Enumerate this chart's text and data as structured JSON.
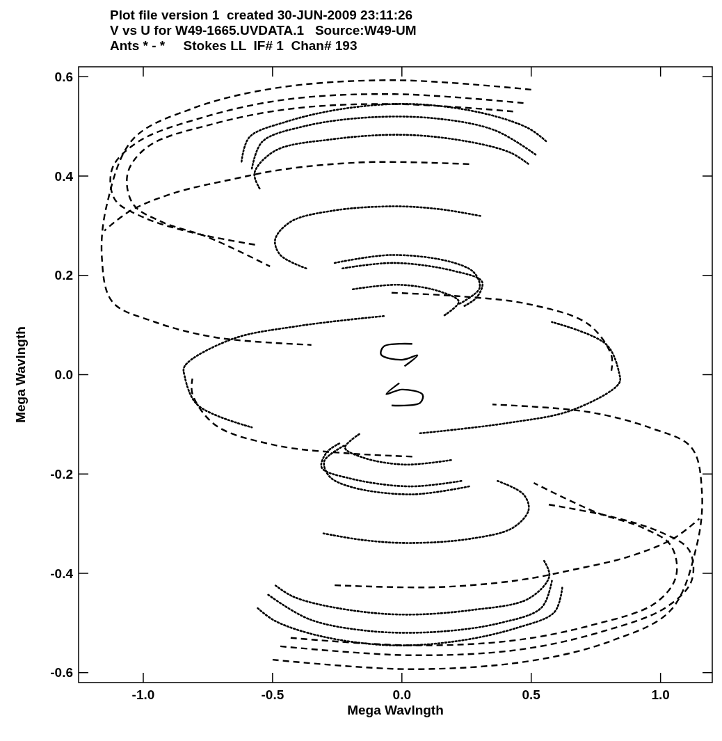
{
  "chart_data": {
    "type": "line",
    "title": "Plot file version 1  created 30-JUN-2009 23:11:26",
    "subtitle": "V vs U for W49-1665.UVDATA.1   Source:W49-UM\nAnts * - *     Stokes LL  IF# 1  Chan# 193",
    "xlabel": "Mega Wavlngth",
    "ylabel": "Mega Wavlngth",
    "xlim": [
      -1.25,
      1.2
    ],
    "ylim": [
      -0.62,
      0.62
    ],
    "xticks": [
      {
        "value": -1,
        "label": "-1.0"
      },
      -0.5,
      {
        "value": 0,
        "label": "0.0"
      },
      0.5,
      {
        "value": 1,
        "label": "1.0"
      }
    ],
    "yticks": [
      -0.6,
      -0.4,
      -0.2,
      {
        "value": 0,
        "label": "0.0"
      },
      0.2,
      0.4,
      0.6
    ],
    "grid": false,
    "series": [
      {
        "color": "#000000",
        "line_style": "dashed",
        "x": [
          0.5,
          -0.03,
          -0.49,
          -0.81,
          -1.04,
          -1.14,
          -1.16,
          -1.12,
          -0.96,
          -0.72,
          -0.35
        ],
        "values": [
          0.574,
          0.593,
          0.577,
          0.536,
          0.474,
          0.344,
          0.236,
          0.147,
          0.107,
          0.075,
          0.06
        ]
      },
      {
        "color": "#000000",
        "line_style": "dashed",
        "x": [
          0.47,
          -0.03,
          -0.45,
          -0.77,
          -1.02,
          -1.12,
          -1.11,
          -1.0,
          -0.81,
          -0.56
        ],
        "values": [
          0.547,
          0.565,
          0.554,
          0.518,
          0.469,
          0.415,
          0.353,
          0.317,
          0.286,
          0.261
        ]
      },
      {
        "color": "#000000",
        "line_style": "dashed",
        "x": [
          0.43,
          -0.03,
          -0.42,
          -0.73,
          -0.98,
          -1.06,
          -1.04,
          -0.93,
          -0.75,
          -0.51
        ],
        "values": [
          0.53,
          0.545,
          0.536,
          0.505,
          0.46,
          0.406,
          0.344,
          0.308,
          0.277,
          0.218
        ]
      },
      {
        "color": "#000000",
        "line_style": "dashed",
        "x": [
          0.26,
          -0.13,
          -0.45,
          -0.66,
          -0.88,
          -1.05,
          -1.15
        ],
        "values": [
          0.424,
          0.428,
          0.414,
          0.393,
          0.366,
          0.33,
          0.29
        ]
      },
      {
        "color": "#000000",
        "line_style": "dotted",
        "x": [
          -0.62,
          -0.59,
          -0.45,
          -0.22,
          0.04,
          0.31,
          0.49,
          0.56
        ],
        "values": [
          0.429,
          0.478,
          0.509,
          0.536,
          0.545,
          0.527,
          0.496,
          0.469
        ]
      },
      {
        "color": "#000000",
        "line_style": "dotted",
        "x": [
          -0.58,
          -0.54,
          -0.38,
          -0.13,
          0.13,
          0.36,
          0.52
        ],
        "values": [
          0.415,
          0.469,
          0.5,
          0.518,
          0.516,
          0.492,
          0.442
        ]
      },
      {
        "color": "#000000",
        "line_style": "dotted",
        "x": [
          -0.55,
          -0.57,
          -0.49,
          -0.27,
          0.01,
          0.26,
          0.42,
          0.49
        ],
        "values": [
          0.375,
          0.406,
          0.451,
          0.474,
          0.483,
          0.469,
          0.447,
          0.424
        ]
      },
      {
        "color": "#000000",
        "line_style": "dotted",
        "x": [
          -0.37,
          -0.47,
          -0.49,
          -0.43,
          -0.27,
          -0.03,
          0.15,
          0.31
        ],
        "values": [
          0.214,
          0.241,
          0.272,
          0.308,
          0.33,
          0.339,
          0.333,
          0.319
        ]
      },
      {
        "color": "#000000",
        "line_style": "dotted",
        "x": [
          -0.26,
          -0.04,
          0.19,
          0.28,
          0.3,
          0.22
        ],
        "values": [
          0.225,
          0.241,
          0.227,
          0.205,
          0.174,
          0.142
        ]
      },
      {
        "color": "#000000",
        "line_style": "dotted",
        "x": [
          -0.23,
          -0.03,
          0.2,
          0.31,
          0.29,
          0.24
        ],
        "values": [
          0.214,
          0.225,
          0.209,
          0.187,
          0.156,
          0.138
        ]
      },
      {
        "color": "#000000",
        "line_style": "dotted",
        "x": [
          -0.19,
          -0.01,
          0.15,
          0.22,
          0.16
        ],
        "values": [
          0.172,
          0.181,
          0.167,
          0.147,
          0.118
        ]
      },
      {
        "color": "#000000",
        "line_style": "dashed",
        "x": [
          -0.04,
          0.22,
          0.49,
          0.72,
          0.81,
          0.81
        ],
        "values": [
          0.165,
          0.158,
          0.142,
          0.102,
          0.039,
          0.008
        ]
      },
      {
        "color": "#000000",
        "line_style": "dotted",
        "x": [
          -0.07,
          -0.4,
          -0.66,
          -0.84,
          -0.84,
          -0.79,
          -0.58
        ],
        "values": [
          0.118,
          0.098,
          0.071,
          0.017,
          -0.003,
          -0.061,
          -0.106
        ]
      },
      {
        "color": "#000000",
        "line_style": "solid",
        "x": [
          0.04,
          -0.07,
          -0.08,
          0.0,
          0.06,
          0.01
        ],
        "values": [
          0.062,
          0.057,
          0.04,
          0.03,
          0.039,
          0.017
        ]
      },
      {
        "color": "#000000",
        "line_style": "dashed",
        "x": [
          -0.5,
          0.03,
          0.49,
          0.81,
          1.04,
          1.14,
          1.16,
          1.12,
          0.96,
          0.72,
          0.35
        ],
        "values": [
          -0.574,
          -0.593,
          -0.577,
          -0.536,
          -0.474,
          -0.344,
          -0.236,
          -0.147,
          -0.107,
          -0.075,
          -0.06
        ]
      },
      {
        "color": "#000000",
        "line_style": "dashed",
        "x": [
          -0.47,
          0.03,
          0.45,
          0.77,
          1.02,
          1.12,
          1.11,
          1.0,
          0.81,
          0.56
        ],
        "values": [
          -0.547,
          -0.565,
          -0.554,
          -0.518,
          -0.469,
          -0.415,
          -0.353,
          -0.317,
          -0.286,
          -0.261
        ]
      },
      {
        "color": "#000000",
        "line_style": "dashed",
        "x": [
          -0.43,
          0.03,
          0.42,
          0.73,
          0.98,
          1.06,
          1.04,
          0.93,
          0.75,
          0.51
        ],
        "values": [
          -0.53,
          -0.545,
          -0.536,
          -0.505,
          -0.46,
          -0.406,
          -0.344,
          -0.308,
          -0.277,
          -0.218
        ]
      },
      {
        "color": "#000000",
        "line_style": "dashed",
        "x": [
          -0.26,
          0.13,
          0.45,
          0.66,
          0.88,
          1.05,
          1.15
        ],
        "values": [
          -0.424,
          -0.428,
          -0.414,
          -0.393,
          -0.366,
          -0.33,
          -0.29
        ]
      },
      {
        "color": "#000000",
        "line_style": "dotted",
        "x": [
          0.62,
          0.59,
          0.45,
          0.22,
          -0.04,
          -0.31,
          -0.49,
          -0.56
        ],
        "values": [
          -0.429,
          -0.478,
          -0.509,
          -0.536,
          -0.545,
          -0.527,
          -0.496,
          -0.469
        ]
      },
      {
        "color": "#000000",
        "line_style": "dotted",
        "x": [
          0.58,
          0.54,
          0.38,
          0.13,
          -0.13,
          -0.36,
          -0.52
        ],
        "values": [
          -0.415,
          -0.469,
          -0.5,
          -0.518,
          -0.516,
          -0.492,
          -0.442
        ]
      },
      {
        "color": "#000000",
        "line_style": "dotted",
        "x": [
          0.55,
          0.57,
          0.49,
          0.27,
          -0.01,
          -0.26,
          -0.42,
          -0.49
        ],
        "values": [
          -0.375,
          -0.406,
          -0.451,
          -0.474,
          -0.483,
          -0.469,
          -0.447,
          -0.424
        ]
      },
      {
        "color": "#000000",
        "line_style": "dotted",
        "x": [
          0.37,
          0.47,
          0.49,
          0.43,
          0.27,
          0.03,
          -0.15,
          -0.31
        ],
        "values": [
          -0.214,
          -0.241,
          -0.272,
          -0.308,
          -0.33,
          -0.339,
          -0.333,
          -0.319
        ]
      },
      {
        "color": "#000000",
        "line_style": "dotted",
        "x": [
          0.26,
          0.04,
          -0.19,
          -0.28,
          -0.3,
          -0.22
        ],
        "values": [
          -0.225,
          -0.241,
          -0.227,
          -0.205,
          -0.174,
          -0.142
        ]
      },
      {
        "color": "#000000",
        "line_style": "dotted",
        "x": [
          0.23,
          0.03,
          -0.2,
          -0.31,
          -0.29,
          -0.24
        ],
        "values": [
          -0.214,
          -0.225,
          -0.209,
          -0.187,
          -0.156,
          -0.138
        ]
      },
      {
        "color": "#000000",
        "line_style": "dotted",
        "x": [
          0.19,
          0.01,
          -0.15,
          -0.22,
          -0.16
        ],
        "values": [
          -0.172,
          -0.181,
          -0.167,
          -0.147,
          -0.118
        ]
      },
      {
        "color": "#000000",
        "line_style": "dashed",
        "x": [
          0.04,
          -0.22,
          -0.49,
          -0.72,
          -0.81,
          -0.81
        ],
        "values": [
          -0.165,
          -0.158,
          -0.142,
          -0.102,
          -0.039,
          -0.008
        ]
      },
      {
        "color": "#000000",
        "line_style": "dotted",
        "x": [
          0.07,
          0.4,
          0.66,
          0.84,
          0.84,
          0.79,
          0.58
        ],
        "values": [
          -0.118,
          -0.098,
          -0.071,
          -0.017,
          0.003,
          0.061,
          0.106
        ]
      },
      {
        "color": "#000000",
        "line_style": "solid",
        "x": [
          -0.04,
          0.07,
          0.08,
          0.0,
          -0.06,
          -0.01
        ],
        "values": [
          -0.062,
          -0.057,
          -0.04,
          -0.03,
          -0.039,
          -0.017
        ]
      }
    ]
  }
}
